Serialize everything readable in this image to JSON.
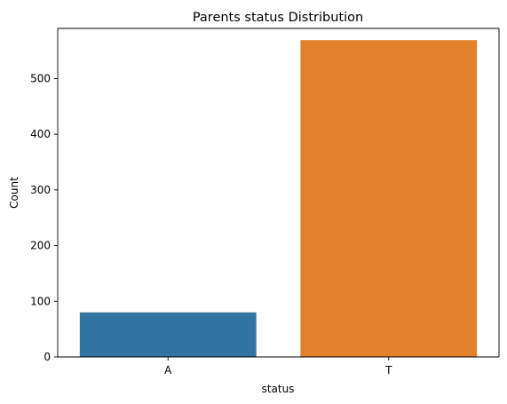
{
  "chart_data": {
    "type": "bar",
    "title": "Parents status Distribution",
    "xlabel": "status",
    "ylabel": "Count",
    "categories": [
      "A",
      "T"
    ],
    "values": [
      80,
      569
    ],
    "colors": [
      "#3274a1",
      "#e1812c"
    ],
    "ylim": [
      0,
      590
    ],
    "yticks": [
      0,
      100,
      200,
      300,
      400,
      500
    ],
    "grid": false,
    "legend": "none"
  }
}
